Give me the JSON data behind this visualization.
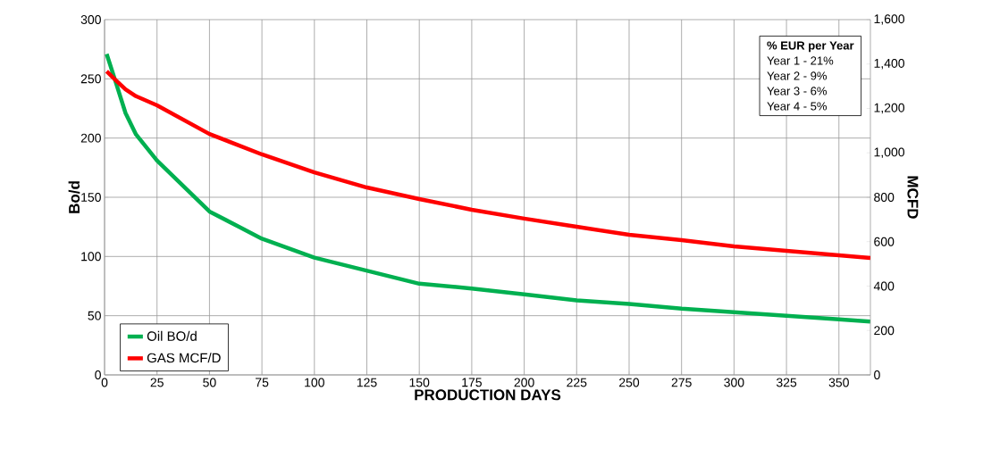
{
  "chart_data": {
    "type": "line",
    "xlabel": "PRODUCTION DAYS",
    "ylabel": "Bo/d",
    "y2label": "MCFD",
    "x": [
      1,
      5,
      10,
      15,
      25,
      50,
      75,
      100,
      125,
      150,
      175,
      200,
      225,
      250,
      275,
      300,
      325,
      350,
      365
    ],
    "series": [
      {
        "name": "Oil BO/d",
        "color": "#00b050",
        "values": [
          271,
          249,
          221,
          203,
          181,
          138,
          115,
          99,
          88,
          77,
          73,
          68,
          63,
          60,
          56,
          53,
          50,
          47,
          45
        ]
      },
      {
        "name": "GAS MCF/D",
        "color": "#ff0000",
        "axis": "y2",
        "values": [
          1367,
          1330,
          1286,
          1255,
          1214,
          1085,
          993,
          912,
          844,
          792,
          744,
          704,
          667,
          631,
          607,
          579,
          559,
          539,
          527
        ]
      }
    ],
    "xlim": [
      0,
      365
    ],
    "xticks": [
      0,
      25,
      50,
      75,
      100,
      125,
      150,
      175,
      200,
      225,
      250,
      275,
      300,
      325,
      350
    ],
    "ylim": [
      0,
      300
    ],
    "yticks": [
      0,
      50,
      100,
      150,
      200,
      250,
      300
    ],
    "y2lim": [
      0,
      1600
    ],
    "y2ticks": [
      0,
      200,
      400,
      600,
      800,
      {
        "value": 1000,
        "label": "1,000"
      },
      {
        "value": 1200,
        "label": "1,200"
      },
      {
        "value": 1400,
        "label": "1,400"
      },
      {
        "value": 1600,
        "label": "1,600"
      }
    ],
    "annotations": [
      "**% EUR per Year**",
      "Year 1 - 21%",
      "Year 2 - 9%",
      "Year 3 - 6%",
      "Year 4 - 5%"
    ],
    "grid": true,
    "legend": "bottom left",
    "marker": "none",
    "line_style": "solid"
  }
}
